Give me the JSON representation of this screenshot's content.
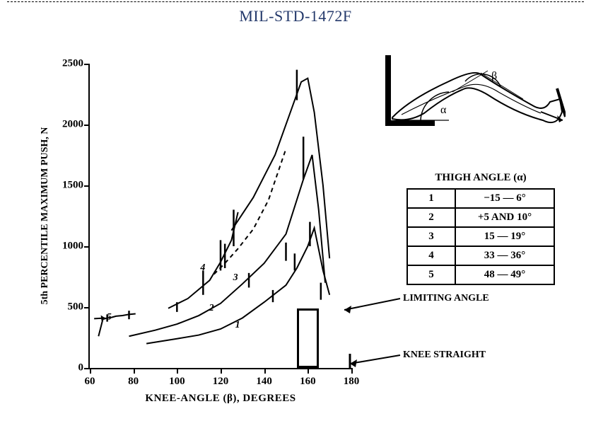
{
  "doc": {
    "title": "MIL-STD-1472F"
  },
  "chart": {
    "type": "line",
    "xlabel": "KNEE-ANGLE (β), DEGREES",
    "ylabel": "5th PERCENTILE MAXIMUM PUSH, N",
    "xlim": [
      60,
      180
    ],
    "ylim": [
      0,
      2500
    ],
    "xticks": [
      60,
      80,
      100,
      120,
      140,
      160,
      180
    ],
    "yticks": [
      0,
      500,
      1000,
      1500,
      2000,
      2500
    ],
    "line_color": "#000000",
    "background_color": "#ffffff",
    "line_width": 2,
    "series": [
      {
        "id": "1",
        "dash": "solid",
        "points": [
          [
            86,
            200
          ],
          [
            100,
            240
          ],
          [
            110,
            270
          ],
          [
            120,
            320
          ],
          [
            130,
            410
          ],
          [
            140,
            540
          ],
          [
            150,
            680
          ],
          [
            155,
            820
          ],
          [
            160,
            1000
          ],
          [
            163,
            1150
          ],
          [
            167,
            800
          ],
          [
            170,
            600
          ]
        ]
      },
      {
        "id": "2",
        "dash": "solid",
        "points": [
          [
            78,
            260
          ],
          [
            90,
            310
          ],
          [
            100,
            360
          ],
          [
            110,
            430
          ],
          [
            120,
            530
          ],
          [
            130,
            690
          ],
          [
            140,
            860
          ],
          [
            150,
            1100
          ],
          [
            158,
            1550
          ],
          [
            162,
            1750
          ],
          [
            165,
            1300
          ],
          [
            168,
            700
          ]
        ]
      },
      {
        "id": "3",
        "dash": "dashed",
        "points": [
          [
            117,
            770
          ],
          [
            122,
            860
          ],
          [
            128,
            980
          ],
          [
            135,
            1140
          ],
          [
            142,
            1380
          ],
          [
            150,
            1800
          ]
        ]
      },
      {
        "id": "4",
        "dash": "solid",
        "points": [
          [
            96,
            490
          ],
          [
            105,
            570
          ],
          [
            115,
            720
          ],
          [
            120,
            870
          ],
          [
            125,
            1050
          ],
          [
            128,
            1280
          ]
        ]
      },
      {
        "id": "5",
        "dash": "solid",
        "points": [
          [
            64,
            260
          ],
          [
            66,
            400
          ],
          [
            68,
            410
          ],
          [
            70,
            415
          ],
          [
            72,
            425
          ],
          [
            75,
            430
          ],
          [
            78,
            440
          ],
          [
            81,
            445
          ]
        ]
      },
      {
        "id": "peak",
        "dash": "solid",
        "points": [
          [
            125,
            1130
          ],
          [
            135,
            1400
          ],
          [
            145,
            1750
          ],
          [
            152,
            2100
          ],
          [
            157,
            2350
          ],
          [
            160,
            2380
          ],
          [
            163,
            2100
          ],
          [
            167,
            1500
          ],
          [
            170,
            900
          ]
        ]
      }
    ],
    "error_bars": [
      {
        "x": 68,
        "ylo": 380,
        "yhi": 440
      },
      {
        "x": 78,
        "ylo": 400,
        "yhi": 470
      },
      {
        "x": 100,
        "ylo": 460,
        "yhi": 540
      },
      {
        "x": 112,
        "ylo": 600,
        "yhi": 800
      },
      {
        "x": 120,
        "ylo": 800,
        "yhi": 1050
      },
      {
        "x": 122,
        "ylo": 820,
        "yhi": 1020
      },
      {
        "x": 126,
        "ylo": 1000,
        "yhi": 1300
      },
      {
        "x": 133,
        "ylo": 660,
        "yhi": 780
      },
      {
        "x": 144,
        "ylo": 540,
        "yhi": 640
      },
      {
        "x": 150,
        "ylo": 880,
        "yhi": 1030
      },
      {
        "x": 154,
        "ylo": 800,
        "yhi": 940
      },
      {
        "x": 158,
        "ylo": 1550,
        "yhi": 1900
      },
      {
        "x": 155,
        "ylo": 2200,
        "yhi": 2450
      },
      {
        "x": 161,
        "ylo": 1000,
        "yhi": 1200
      },
      {
        "x": 166,
        "ylo": 560,
        "yhi": 700
      }
    ],
    "series_labels": [
      {
        "text": "1",
        "x": 128,
        "y": 350
      },
      {
        "text": "2",
        "x": 116,
        "y": 490
      },
      {
        "text": "3",
        "x": 127,
        "y": 740
      },
      {
        "text": "4",
        "x": 112,
        "y": 820
      },
      {
        "text": "5",
        "x": 69,
        "y": 410
      }
    ],
    "limiting_box": {
      "x0": 155,
      "x1": 165,
      "y0": 0,
      "y1": 490
    },
    "callout_limiting": "LIMITING ANGLE",
    "callout_knee": "KNEE STRAIGHT"
  },
  "table": {
    "title": "THIGH ANGLE (α)",
    "rows": [
      [
        "1",
        "−15 — 6°"
      ],
      [
        "2",
        "+5 AND 10°"
      ],
      [
        "3",
        "15 — 19°"
      ],
      [
        "4",
        "33 — 36°"
      ],
      [
        "5",
        "48 — 49°"
      ]
    ]
  },
  "diagram": {
    "alpha": "α",
    "beta": "β"
  }
}
